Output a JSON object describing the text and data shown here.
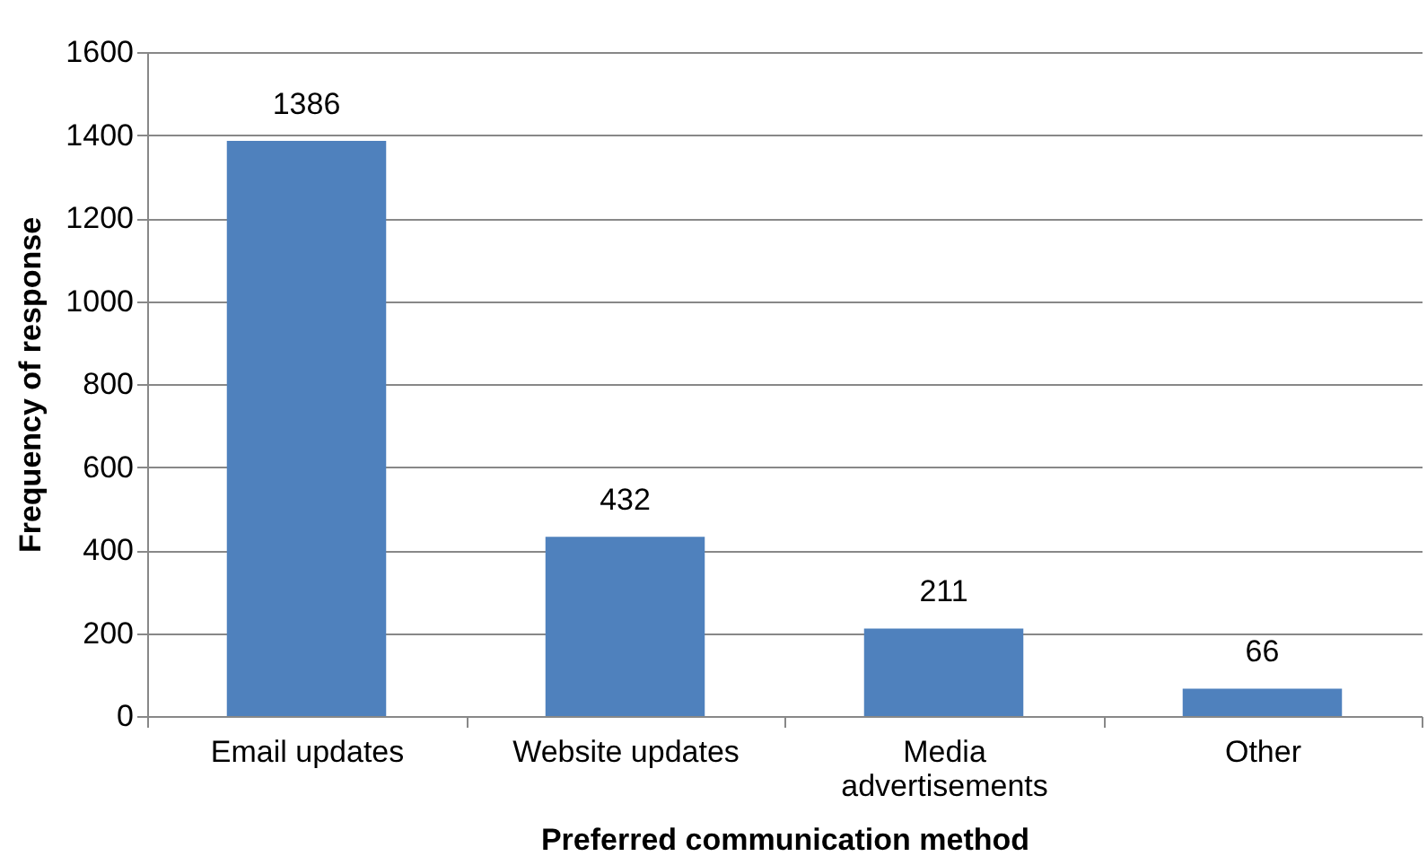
{
  "chart_data": {
    "type": "bar",
    "xlabel": "Preferred communication method",
    "ylabel": "Frequency of response",
    "categories": [
      "Email updates",
      "Website updates",
      "Media advertisements",
      "Other"
    ],
    "values": [
      1386,
      432,
      211,
      66
    ],
    "color": "#4f81bd",
    "ylim": [
      0,
      1600
    ],
    "yticks": [
      0,
      200,
      400,
      600,
      800,
      1000,
      1200,
      1400,
      1600
    ],
    "grid": "y",
    "data_labels": true
  }
}
